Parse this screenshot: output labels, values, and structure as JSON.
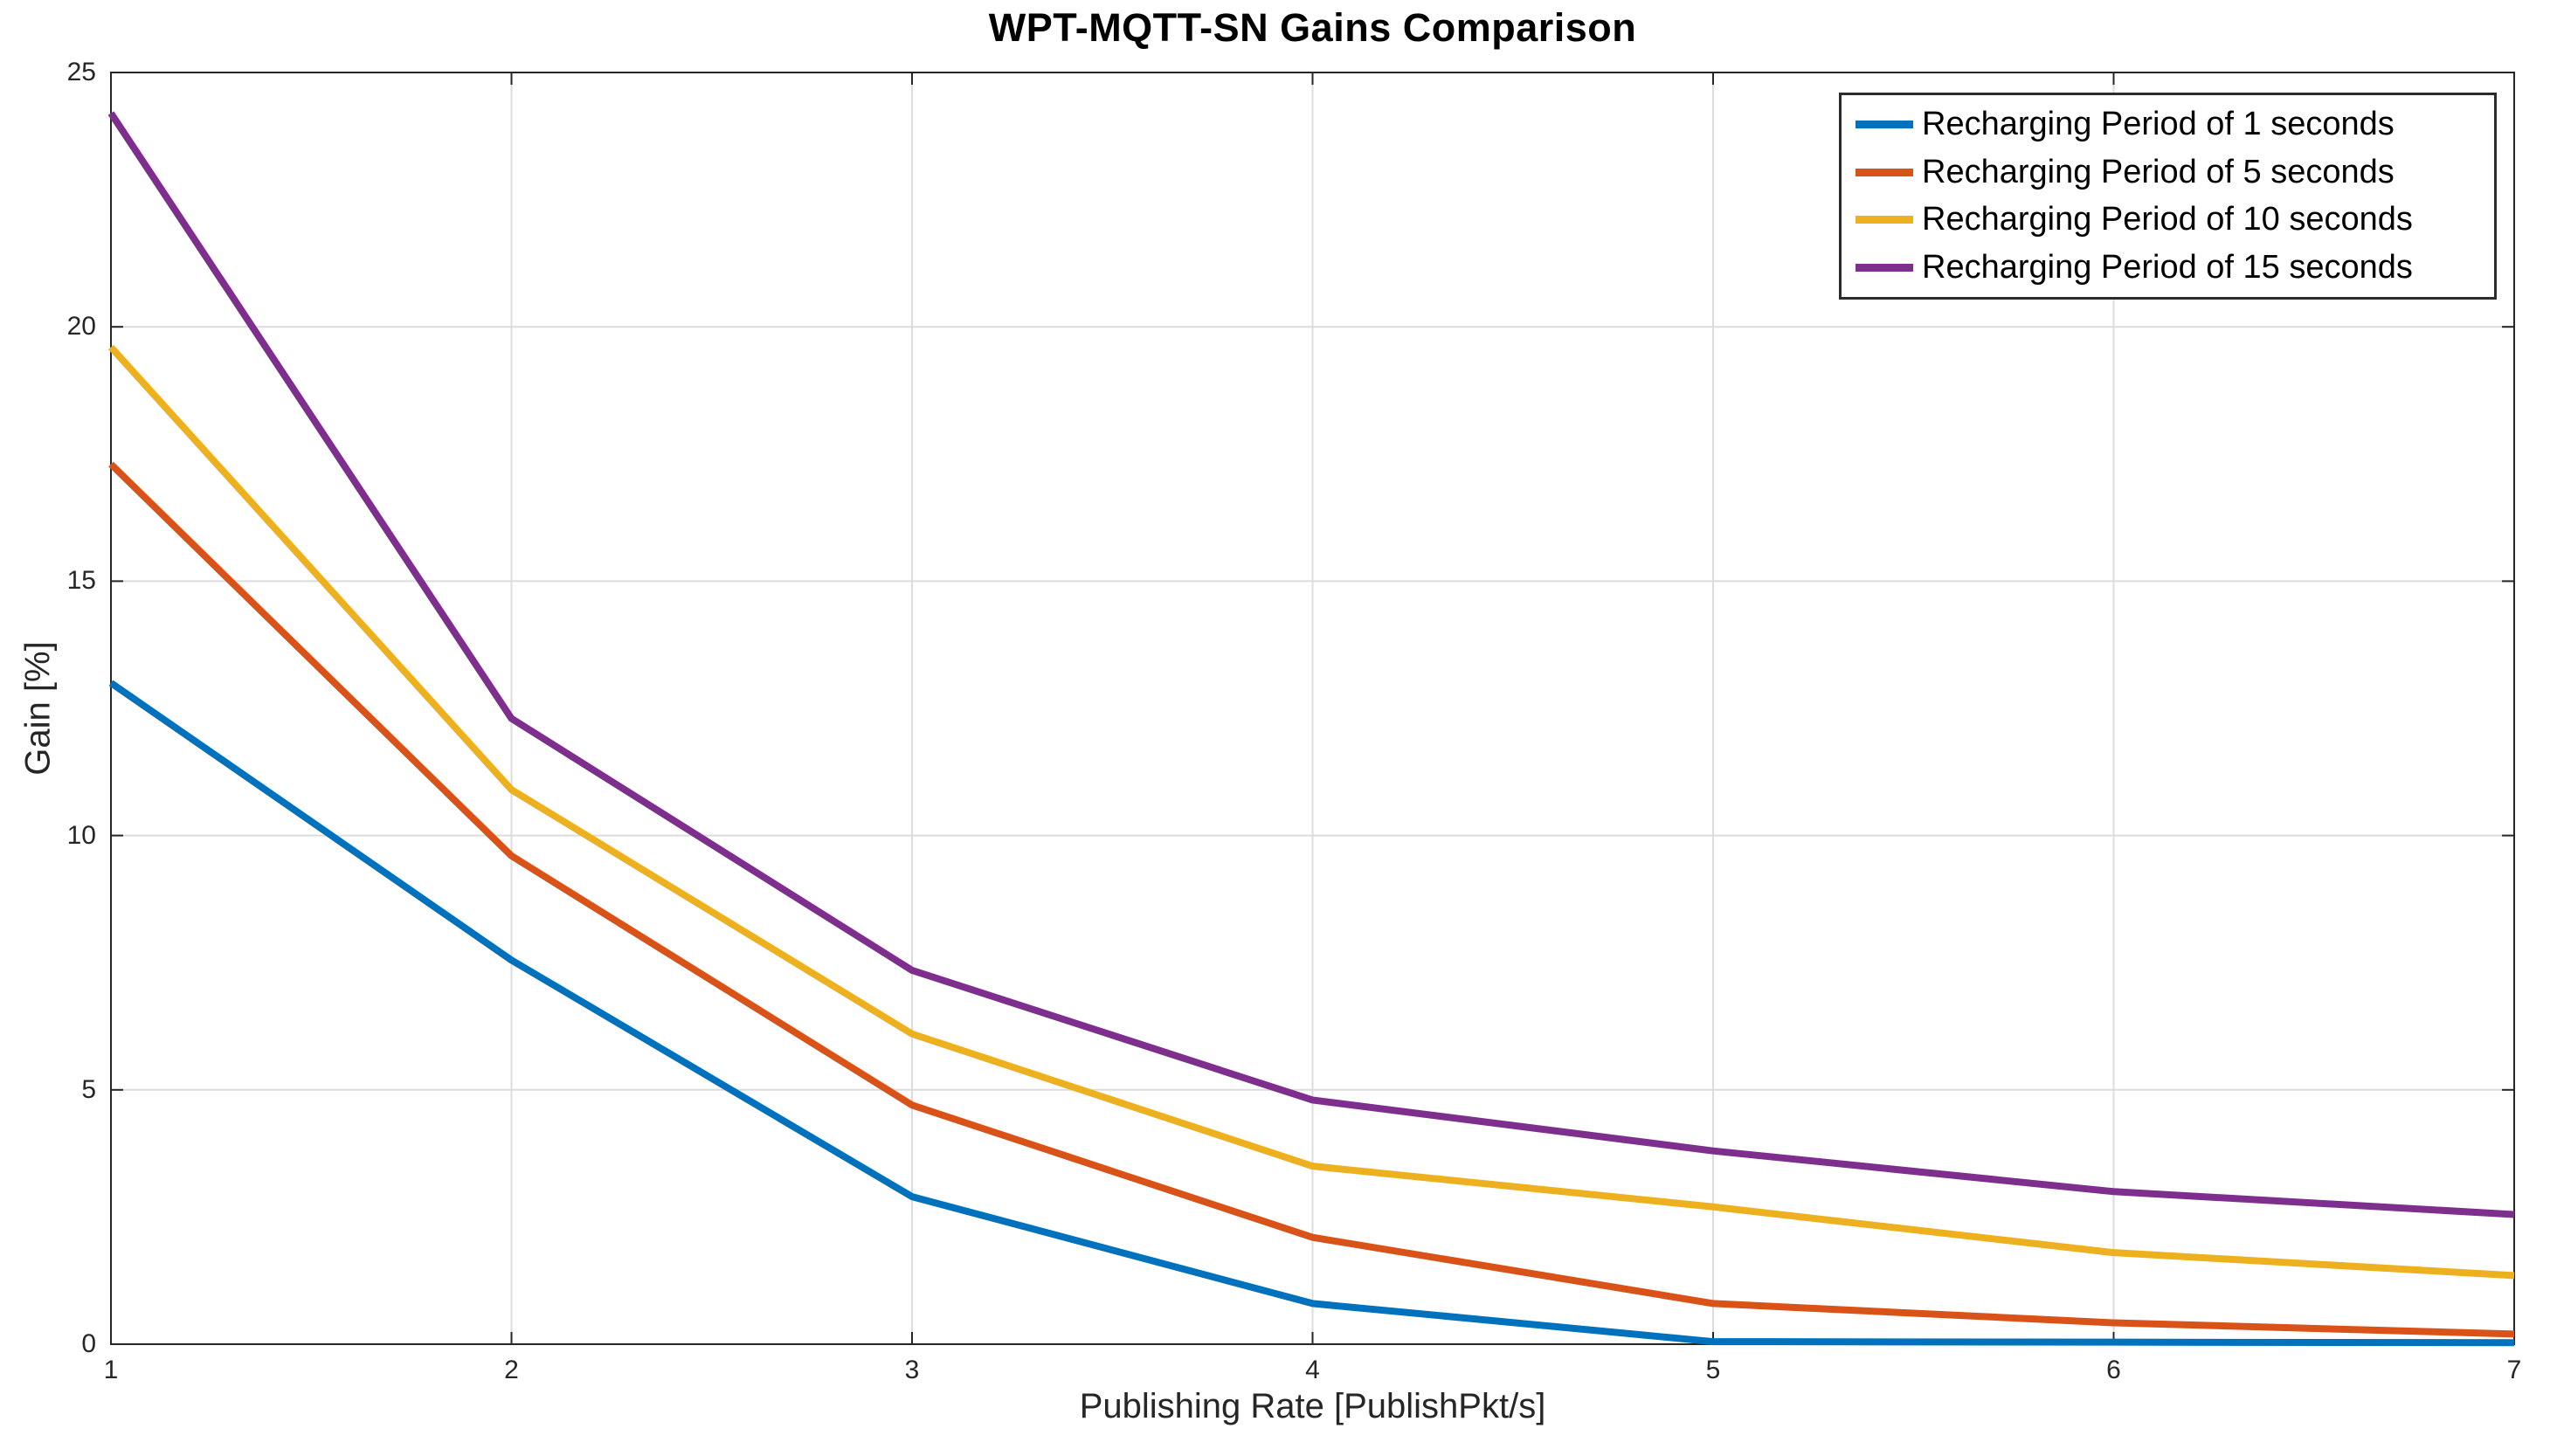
{
  "figure": {
    "title": "WPT-MQTT-SN Gains Comparison"
  },
  "chart_data": {
    "type": "line",
    "title": "WPT-MQTT-SN Gains Comparison",
    "xlabel": "Publishing Rate [PublishPkt/s]",
    "ylabel": "Gain [%]",
    "xlim": [
      1,
      7
    ],
    "ylim": [
      0,
      25
    ],
    "xticks": [
      1,
      2,
      3,
      4,
      5,
      6,
      7
    ],
    "yticks": [
      0,
      5,
      10,
      15,
      20,
      25
    ],
    "grid": true,
    "legend_position": "top-right",
    "x": [
      1,
      2,
      3,
      4,
      5,
      6,
      7
    ],
    "series": [
      {
        "name": "Recharging Period of 1 seconds",
        "color": "#0072BD",
        "values": [
          13.0,
          7.55,
          2.9,
          0.8,
          0.05,
          0.04,
          0.03
        ]
      },
      {
        "name": "Recharging Period of 5 seconds",
        "color": "#D95319",
        "values": [
          17.3,
          9.6,
          4.7,
          2.1,
          0.8,
          0.42,
          0.2
        ]
      },
      {
        "name": "Recharging Period of 10 seconds",
        "color": "#EDB120",
        "values": [
          19.6,
          10.9,
          6.1,
          3.5,
          2.7,
          1.8,
          1.35
        ]
      },
      {
        "name": "Recharging Period of 15 seconds",
        "color": "#7E2F8E",
        "values": [
          24.2,
          12.3,
          7.35,
          4.8,
          3.8,
          3.0,
          2.55
        ]
      }
    ]
  }
}
